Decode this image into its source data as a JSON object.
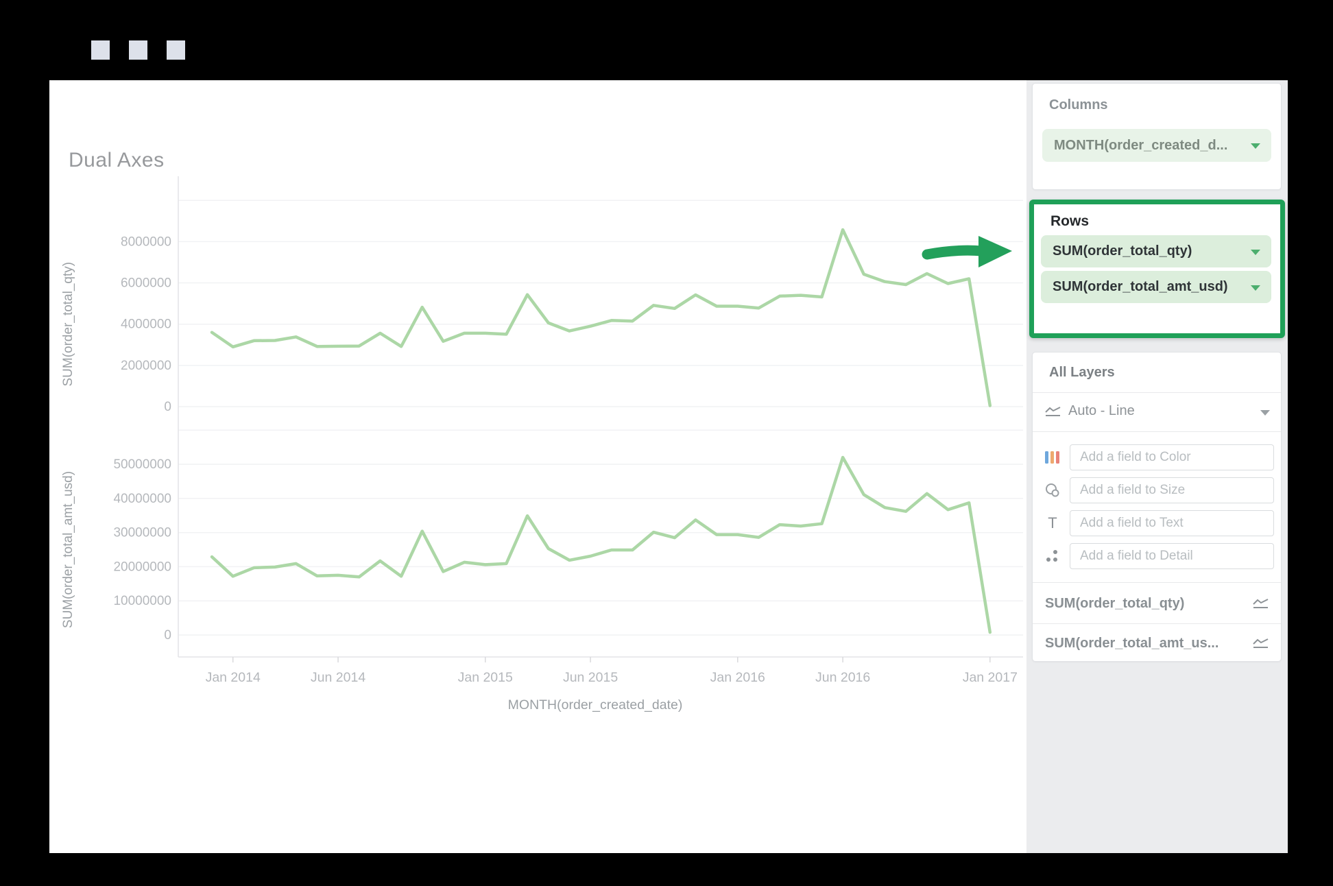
{
  "window": {
    "titlebar_buttons": [
      "square-1",
      "square-2",
      "square-3"
    ]
  },
  "chart": {
    "title": "Dual Axes",
    "x_axis_title": "MONTH(order_created_date)",
    "x_ticks": [
      {
        "label": "Jan 2014",
        "month_index": 1
      },
      {
        "label": "Jun 2014",
        "month_index": 6
      },
      {
        "label": "Jan 2015",
        "month_index": 13
      },
      {
        "label": "Jun 2015",
        "month_index": 18
      },
      {
        "label": "Jan 2016",
        "month_index": 25
      },
      {
        "label": "Jun 2016",
        "month_index": 30
      },
      {
        "label": "Jan 2017",
        "month_index": 37
      }
    ],
    "line_color": "#acd7a6",
    "grid_color": "#f1f2f4",
    "axis_color": "#e3e4e7",
    "tick_text_color": "#b5b8bc",
    "axis_title_color": "#9ba0a4"
  },
  "chart_data": [
    {
      "type": "line",
      "name": "SUM(order_total_qty)",
      "ylabel": "SUM(order_total_qty)",
      "yticks": [
        0,
        2000000,
        4000000,
        6000000,
        8000000
      ],
      "ylim": [
        0,
        10000000
      ],
      "x": [
        "Dec 2013",
        "Jan 2014",
        "Feb 2014",
        "Mar 2014",
        "Apr 2014",
        "May 2014",
        "Jun 2014",
        "Jul 2014",
        "Aug 2014",
        "Sep 2014",
        "Oct 2014",
        "Nov 2014",
        "Dec 2014",
        "Jan 2015",
        "Feb 2015",
        "Mar 2015",
        "Apr 2015",
        "May 2015",
        "Jun 2015",
        "Jul 2015",
        "Aug 2015",
        "Sep 2015",
        "Oct 2015",
        "Nov 2015",
        "Dec 2015",
        "Jan 2016",
        "Feb 2016",
        "Mar 2016",
        "Apr 2016",
        "May 2016",
        "Jun 2016",
        "Jul 2016",
        "Aug 2016",
        "Sep 2016",
        "Oct 2016",
        "Nov 2016",
        "Dec 2016",
        "Jan 2017"
      ],
      "values": [
        3600000,
        2900000,
        3200000,
        3210000,
        3380000,
        2920000,
        2930000,
        2940000,
        3560000,
        2920000,
        4820000,
        3170000,
        3560000,
        3560000,
        3510000,
        5430000,
        4060000,
        3670000,
        3900000,
        4180000,
        4150000,
        4910000,
        4760000,
        5420000,
        4870000,
        4870000,
        4780000,
        5360000,
        5400000,
        5320000,
        8580000,
        6420000,
        6060000,
        5920000,
        6450000,
        5970000,
        6200000,
        50000
      ]
    },
    {
      "type": "line",
      "name": "SUM(order_total_amt_usd)",
      "ylabel": "SUM(order_total_amt_usd)",
      "yticks": [
        0,
        10000000,
        20000000,
        30000000,
        40000000,
        50000000
      ],
      "ylim": [
        0,
        60000000
      ],
      "x": [
        "Dec 2013",
        "Jan 2014",
        "Feb 2014",
        "Mar 2014",
        "Apr 2014",
        "May 2014",
        "Jun 2014",
        "Jul 2014",
        "Aug 2014",
        "Sep 2014",
        "Oct 2014",
        "Nov 2014",
        "Dec 2014",
        "Jan 2015",
        "Feb 2015",
        "Mar 2015",
        "Apr 2015",
        "May 2015",
        "Jun 2015",
        "Jul 2015",
        "Aug 2015",
        "Sep 2015",
        "Oct 2015",
        "Nov 2015",
        "Dec 2015",
        "Jan 2016",
        "Feb 2016",
        "Mar 2016",
        "Apr 2016",
        "May 2016",
        "Jun 2016",
        "Jul 2016",
        "Aug 2016",
        "Sep 2016",
        "Oct 2016",
        "Nov 2016",
        "Dec 2016",
        "Jan 2017"
      ],
      "values": [
        22900000,
        17200000,
        19700000,
        19900000,
        20900000,
        17300000,
        17500000,
        17000000,
        21700000,
        17200000,
        30400000,
        18600000,
        21300000,
        20600000,
        20900000,
        34900000,
        25300000,
        21900000,
        23100000,
        24900000,
        24900000,
        30100000,
        28500000,
        33700000,
        29400000,
        29400000,
        28600000,
        32300000,
        31900000,
        32600000,
        52000000,
        41100000,
        37300000,
        36200000,
        41400000,
        36700000,
        38700000,
        800000
      ]
    }
  ],
  "panel": {
    "columns": {
      "label": "Columns",
      "pill": "MONTH(order_created_d..."
    },
    "rows": {
      "label": "Rows",
      "pills": [
        "SUM(order_total_qty)",
        "SUM(order_total_amt_usd)"
      ]
    },
    "all_layers": {
      "label": "All Layers",
      "mark_type": "Auto - Line",
      "fields": [
        {
          "icon": "color-icon",
          "placeholder": "Add a field to Color"
        },
        {
          "icon": "size-icon",
          "placeholder": "Add a field to Size"
        },
        {
          "icon": "text-icon",
          "placeholder": "Add a field to Text"
        },
        {
          "icon": "detail-icon",
          "placeholder": "Add a field to Detail"
        }
      ],
      "layers": [
        "SUM(order_total_qty)",
        "SUM(order_total_amt_us..."
      ]
    }
  },
  "annotations": {
    "arrow_color": "#23a05b",
    "rows_highlight_color": "#1fa058"
  }
}
